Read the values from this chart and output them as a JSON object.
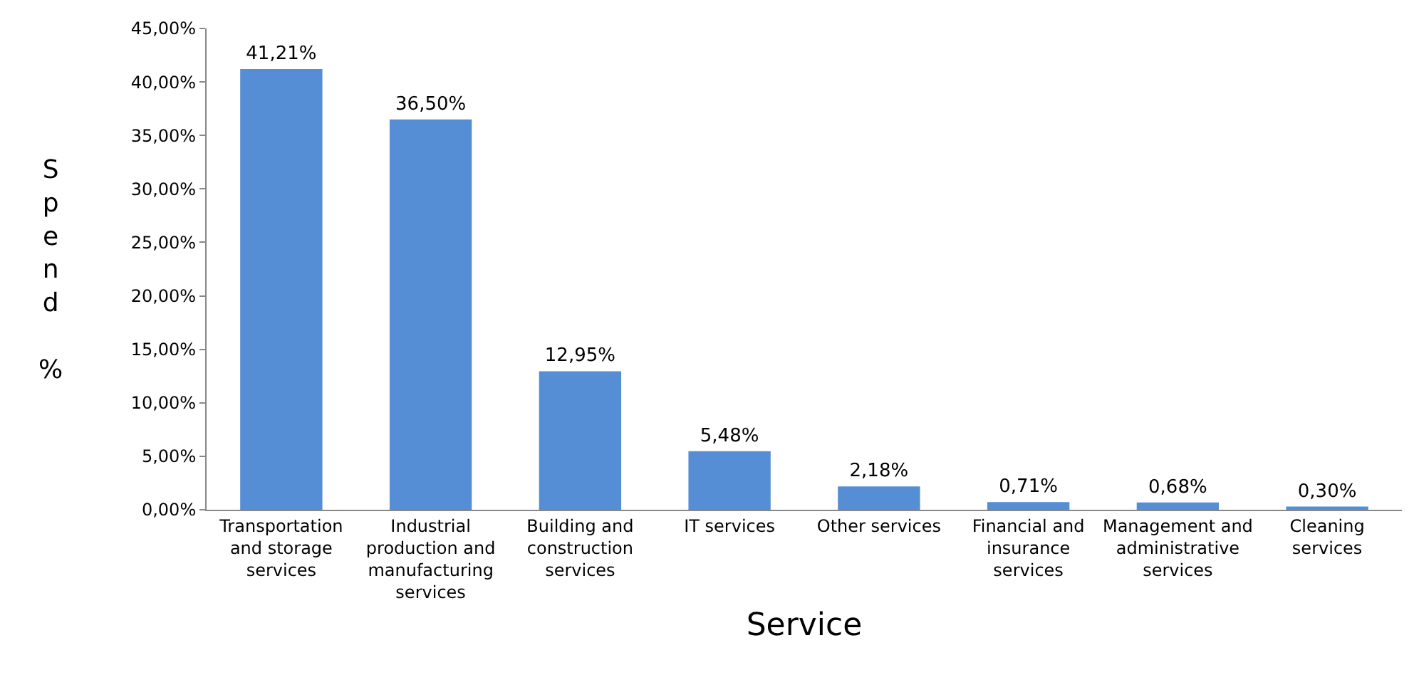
{
  "chart_data": {
    "type": "bar",
    "xlabel": "Service",
    "ylabel": "Spend %",
    "categories": [
      "Transportation and storage services",
      "Industrial production and manufacturing services",
      "Building and construction services",
      "IT services",
      "Other services",
      "Financial and insurance services",
      "Management and administrative services",
      "Cleaning services"
    ],
    "values": [
      41.21,
      36.5,
      12.95,
      5.48,
      2.18,
      0.71,
      0.68,
      0.3
    ],
    "value_labels": [
      "41,21%",
      "36,50%",
      "12,95%",
      "5,48%",
      "2,18%",
      "0,71%",
      "0,68%",
      "0,30%"
    ],
    "color": "#558ed5",
    "ylim": [
      0,
      45
    ],
    "yticks": [
      {
        "value": 0,
        "label": "0,00%"
      },
      {
        "value": 5,
        "label": "5,00%"
      },
      {
        "value": 10,
        "label": "10,00%"
      },
      {
        "value": 15,
        "label": "15,00%"
      },
      {
        "value": 20,
        "label": "20,00%"
      },
      {
        "value": 25,
        "label": "25,00%"
      },
      {
        "value": 30,
        "label": "30,00%"
      },
      {
        "value": 35,
        "label": "35,00%"
      },
      {
        "value": 40,
        "label": "40,00%"
      },
      {
        "value": 45,
        "label": "45,00%"
      }
    ],
    "grid": false
  }
}
